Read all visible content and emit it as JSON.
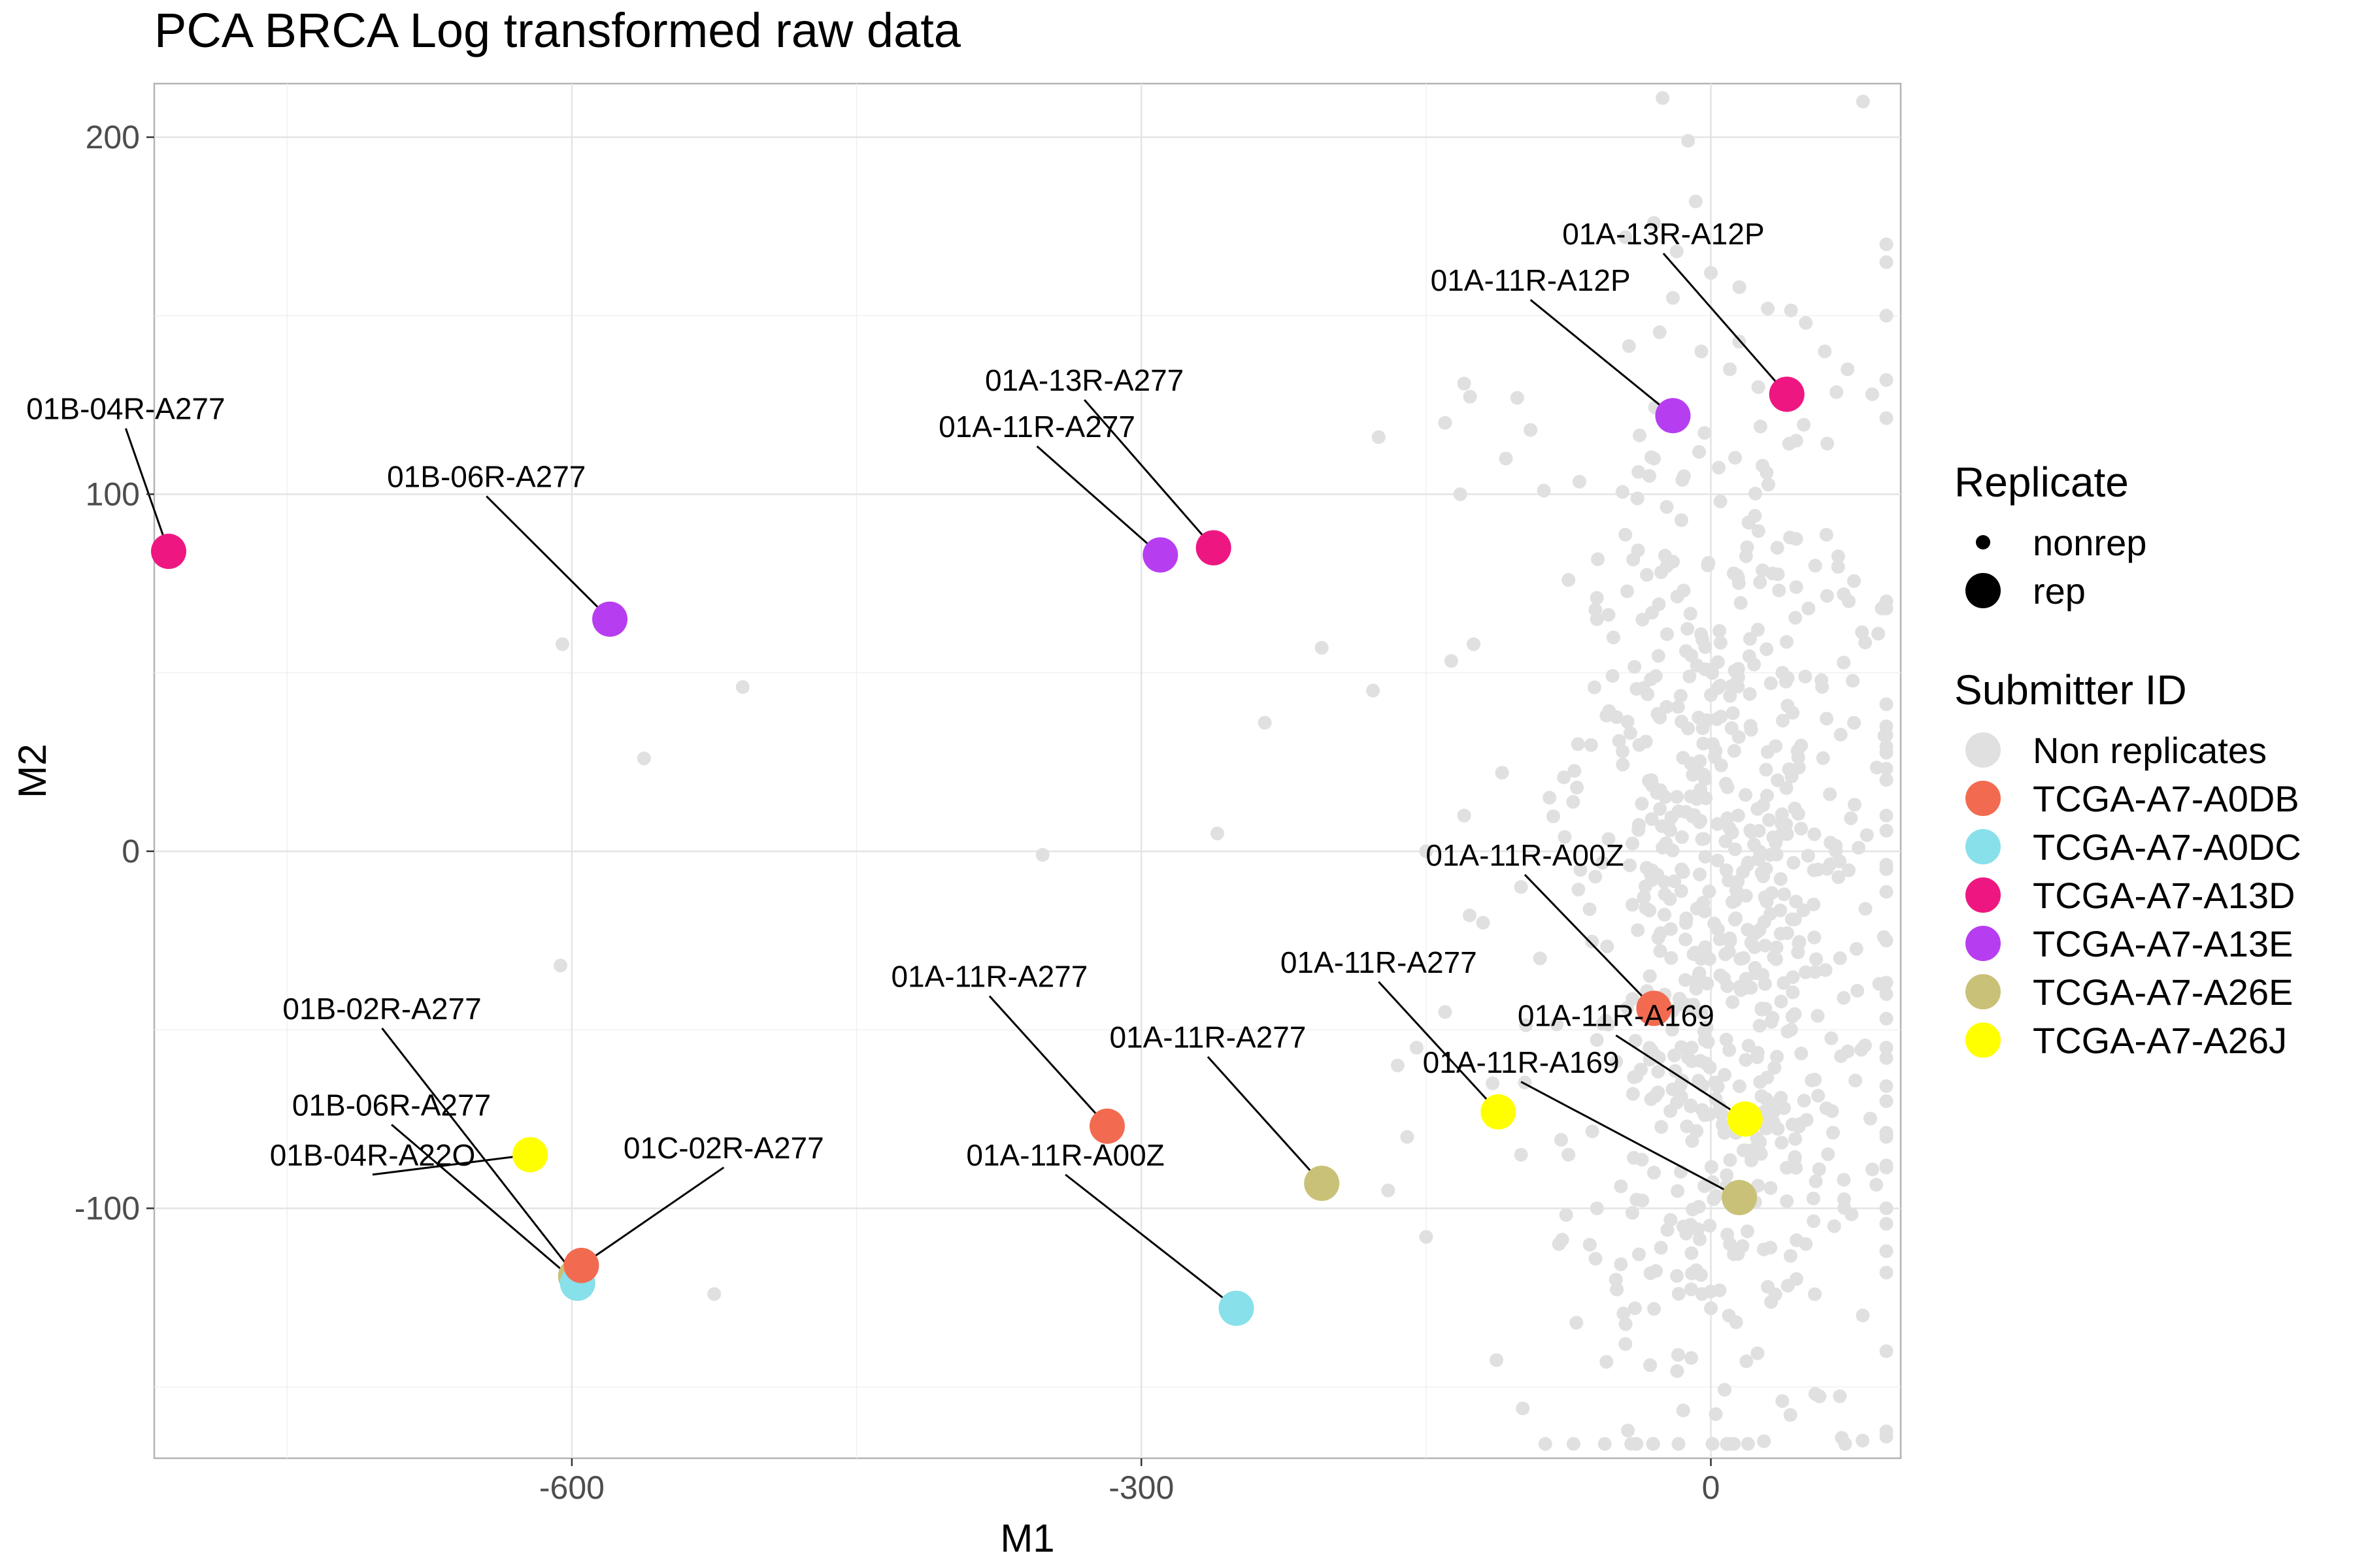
{
  "chart_data": {
    "type": "scatter",
    "title": "PCA BRCA Log transformed raw data",
    "xlabel": "M1",
    "ylabel": "M2",
    "xlim": [
      -820,
      100
    ],
    "ylim": [
      -170,
      215
    ],
    "x_ticks": [
      -600,
      -300,
      0
    ],
    "y_ticks": [
      -100,
      0,
      100,
      200
    ],
    "grid": true,
    "legend_position": "right",
    "colors": {
      "Non replicates": "#e0e0e0",
      "TCGA-A7-A0DB": "#f26b51",
      "TCGA-A7-A0DC": "#87e0ea",
      "TCGA-A7-A13D": "#ee1781",
      "TCGA-A7-A13E": "#b73ef0",
      "TCGA-A7-A26E": "#c9c177",
      "TCGA-A7-A26J": "#ffff00"
    },
    "legends": [
      {
        "title": "Replicate",
        "kind": "size",
        "items": [
          {
            "label": "nonrep",
            "size": "small"
          },
          {
            "label": "rep",
            "size": "large"
          }
        ]
      },
      {
        "title": "Submitter ID",
        "kind": "color",
        "items": [
          {
            "label": "Non replicates"
          },
          {
            "label": "TCGA-A7-A0DB"
          },
          {
            "label": "TCGA-A7-A0DC"
          },
          {
            "label": "TCGA-A7-A13D"
          },
          {
            "label": "TCGA-A7-A13E"
          },
          {
            "label": "TCGA-A7-A26E"
          },
          {
            "label": "TCGA-A7-A26J"
          }
        ]
      }
    ],
    "replicates": [
      {
        "submitter": "TCGA-A7-A13D",
        "label": "01B-04R-A277",
        "x": -845,
        "y": 84,
        "lx": -835,
        "ly": 121
      },
      {
        "submitter": "TCGA-A7-A13E",
        "label": "01B-06R-A277",
        "x": -580,
        "y": 65,
        "lx": -645,
        "ly": 102
      },
      {
        "submitter": "TCGA-A7-A13E",
        "label": "01A-11R-A277",
        "x": -290,
        "y": 83,
        "lx": -355,
        "ly": 116
      },
      {
        "submitter": "TCGA-A7-A13D",
        "label": "01A-13R-A277",
        "x": -262,
        "y": 85,
        "lx": -330,
        "ly": 129
      },
      {
        "submitter": "TCGA-A7-A13E",
        "label": "01A-11R-A12P",
        "x": -20,
        "y": 122,
        "lx": -95,
        "ly": 157
      },
      {
        "submitter": "TCGA-A7-A13D",
        "label": "01A-13R-A12P",
        "x": 40,
        "y": 128,
        "lx": -25,
        "ly": 170
      },
      {
        "submitter": "TCGA-A7-A26E",
        "label": "01B-02R-A277",
        "x": -598,
        "y": -119,
        "lx": -700,
        "ly": -47
      },
      {
        "submitter": "TCGA-A7-A26J",
        "label": "01B-04R-A22O",
        "x": -622,
        "y": -85,
        "lx": -705,
        "ly": -88
      },
      {
        "submitter": "TCGA-A7-A0DC",
        "label": "01B-06R-A277",
        "x": -597,
        "y": -121,
        "lx": -695,
        "ly": -74
      },
      {
        "submitter": "TCGA-A7-A0DB",
        "label": "01C-02R-A277",
        "x": -595,
        "y": -116,
        "lx": -520,
        "ly": -86
      },
      {
        "submitter": "TCGA-A7-A0DB",
        "label": "01A-11R-A277",
        "x": -318,
        "y": -77,
        "lx": -380,
        "ly": -38
      },
      {
        "submitter": "TCGA-A7-A26E",
        "label": "01A-11R-A277",
        "x": -205,
        "y": -93,
        "lx": -265,
        "ly": -55
      },
      {
        "submitter": "TCGA-A7-A0DC",
        "label": "01A-11R-A00Z",
        "x": -250,
        "y": -128,
        "lx": -340,
        "ly": -88
      },
      {
        "submitter": "TCGA-A7-A26J",
        "label": "01A-11R-A277",
        "x": -112,
        "y": -73,
        "lx": -175,
        "ly": -34
      },
      {
        "submitter": "TCGA-A7-A0DB",
        "label": "01A-11R-A00Z",
        "x": -30,
        "y": -44,
        "lx": -98,
        "ly": -4
      },
      {
        "submitter": "TCGA-A7-A26J",
        "label": "01A-11R-A169",
        "x": 18,
        "y": -75,
        "lx": -50,
        "ly": -49
      },
      {
        "submitter": "TCGA-A7-A26E",
        "label": "01A-11R-A169",
        "x": 15,
        "y": -97,
        "lx": -100,
        "ly": -62
      }
    ],
    "nonreplicates": [
      [
        -605,
        58
      ],
      [
        -510,
        46
      ],
      [
        -562,
        26
      ],
      [
        -260,
        5
      ],
      [
        -352,
        -1
      ],
      [
        -606,
        -32
      ],
      [
        -525,
        -124
      ],
      [
        -235,
        36
      ],
      [
        -205,
        57
      ],
      [
        -178,
        45
      ],
      [
        -175,
        116
      ],
      [
        -130,
        131
      ],
      [
        -140,
        120
      ],
      [
        -132,
        100
      ],
      [
        -125,
        58
      ],
      [
        -108,
        110
      ],
      [
        -102,
        127
      ],
      [
        -95,
        118
      ],
      [
        -88,
        101
      ],
      [
        -75,
        76
      ],
      [
        -60,
        65
      ],
      [
        -55,
        38
      ],
      [
        -12,
        199
      ],
      [
        -8,
        182
      ],
      [
        -30,
        176
      ],
      [
        -45,
        172
      ],
      [
        -18,
        168
      ],
      [
        0,
        162
      ],
      [
        15,
        158
      ],
      [
        30,
        152
      ],
      [
        50,
        148
      ],
      [
        60,
        140
      ],
      [
        72,
        135
      ],
      [
        85,
        128
      ],
      [
        100,
        132
      ],
      [
        110,
        150
      ],
      [
        105,
        170
      ],
      [
        95,
        165
      ],
      [
        -20,
        155
      ],
      [
        -5,
        140
      ],
      [
        10,
        135
      ],
      [
        25,
        130
      ],
      [
        45,
        115
      ],
      [
        -30,
        110
      ],
      [
        -15,
        104
      ],
      [
        5,
        98
      ],
      [
        20,
        92
      ],
      [
        35,
        85
      ],
      [
        55,
        80
      ],
      [
        70,
        72
      ],
      [
        90,
        68
      ],
      [
        120,
        68
      ],
      [
        145,
        70
      ],
      [
        150,
        20
      ],
      [
        140,
        10
      ],
      [
        -150,
        0
      ],
      [
        -130,
        10
      ],
      [
        -110,
        22
      ],
      [
        -100,
        -10
      ],
      [
        -90,
        -30
      ],
      [
        -140,
        -45
      ],
      [
        -155,
        -55
      ],
      [
        -165,
        -60
      ],
      [
        -160,
        -80
      ],
      [
        -170,
        -95
      ],
      [
        -150,
        -108
      ],
      [
        -80,
        -110
      ],
      [
        -60,
        -100
      ],
      [
        -50,
        -120
      ],
      [
        -40,
        -128
      ],
      [
        -45,
        -138
      ],
      [
        -55,
        -143
      ],
      [
        0,
        -128
      ],
      [
        30,
        -122
      ],
      [
        50,
        -110
      ],
      [
        65,
        -105
      ],
      [
        80,
        -130
      ],
      [
        100,
        -140
      ],
      [
        55,
        -152
      ],
      [
        105,
        -118
      ],
      [
        130,
        -112
      ],
      [
        140,
        -100
      ],
      [
        145,
        -80
      ],
      [
        130,
        -70
      ],
      [
        115,
        -55
      ],
      [
        120,
        -40
      ],
      [
        130,
        -25
      ],
      [
        138,
        -5
      ],
      [
        140,
        35
      ],
      [
        -70,
        30
      ],
      [
        -85,
        15
      ],
      [
        -120,
        -20
      ],
      [
        -115,
        -65
      ],
      [
        -100,
        -85
      ],
      [
        -75,
        -85
      ],
      [
        -30,
        -90
      ],
      [
        10,
        -110
      ],
      [
        40,
        -98
      ],
      [
        70,
        -92
      ],
      [
        95,
        -88
      ]
    ],
    "cluster": {
      "cx": 10,
      "cy": -20,
      "sx": 42,
      "sy": 70,
      "count": 700,
      "seed": 7
    }
  }
}
